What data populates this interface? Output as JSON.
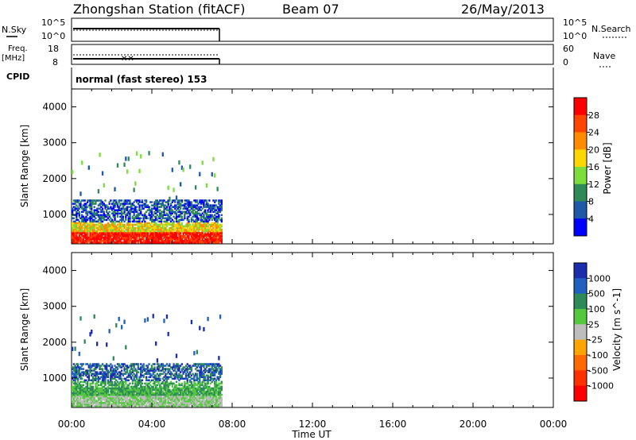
{
  "header": {
    "station": "Zhongshan Station (fitACF)",
    "beam": "Beam 07",
    "date": "26/May/2013"
  },
  "nsky_panel": {
    "label": "N.Sky",
    "right_label": "N.Search",
    "ticks": [
      "10^5",
      "10^0"
    ]
  },
  "freq_panel": {
    "label_line1": "Freq.",
    "label_line2": "[MHz]",
    "left_ticks": [
      "18",
      "8"
    ],
    "right_ticks": [
      "60",
      "0"
    ],
    "right_label": "Nave"
  },
  "cpid_panel": {
    "label": "CPID",
    "text": "normal (fast stereo) 153"
  },
  "chart_data": [
    {
      "type": "heatmap",
      "ylabel": "Slant Range [km]",
      "ylim": [
        180,
        4500
      ],
      "yticks": [
        1000,
        2000,
        3000,
        4000
      ],
      "xlim_hours": [
        0,
        24
      ],
      "data_extent_hours": [
        0,
        7.5
      ],
      "colorbar": {
        "label": "Power [dB]",
        "ticks": [
          "28",
          "24",
          "20",
          "16",
          "12",
          "8",
          "4"
        ],
        "colors": [
          "#ff0000",
          "#ff4500",
          "#ff8c00",
          "#ffd700",
          "#7cdd3c",
          "#2e8b57",
          "#1e5aa8",
          "#0000ff"
        ]
      },
      "regions": [
        {
          "x": [
            0,
            7.5
          ],
          "y": [
            200,
            500
          ],
          "value": "28"
        },
        {
          "x": [
            0,
            7.5
          ],
          "y": [
            350,
            750
          ],
          "value": "20"
        },
        {
          "x": [
            0,
            7.5
          ],
          "y": [
            600,
            1300
          ],
          "value": "8"
        },
        {
          "x": [
            0.2,
            7.5
          ],
          "y": [
            1300,
            2700
          ],
          "value": "12"
        }
      ]
    },
    {
      "type": "heatmap",
      "ylabel": "Slant Range [km]",
      "ylim": [
        180,
        4500
      ],
      "yticks": [
        1000,
        2000,
        3000,
        4000
      ],
      "xlim_hours": [
        0,
        24
      ],
      "data_extent_hours": [
        0,
        7.5
      ],
      "colorbar": {
        "label": "Velocity [m s^-1]",
        "ticks": [
          "1000",
          "500",
          "100",
          "25",
          "-25",
          "-100",
          "-500",
          "-1000"
        ],
        "colors": [
          "#1a2dad",
          "#2060c0",
          "#2e8b57",
          "#55c840",
          "#bdbdbd",
          "#ffa500",
          "#ff6a00",
          "#ff3000",
          "#ff0000"
        ]
      },
      "regions": [
        {
          "x": [
            0,
            7.5
          ],
          "y": [
            200,
            500
          ],
          "value": "25"
        },
        {
          "x": [
            0,
            7.5
          ],
          "y": [
            350,
            900
          ],
          "value": "100"
        },
        {
          "x": [
            0,
            7.5
          ],
          "y": [
            900,
            1300
          ],
          "value": "500"
        },
        {
          "x": [
            0.2,
            7.5
          ],
          "y": [
            1300,
            2700
          ],
          "value": "1000"
        }
      ]
    }
  ],
  "x_axis": {
    "ticks": [
      "00:00",
      "04:00",
      "08:00",
      "12:00",
      "16:00",
      "20:00",
      "00:00"
    ],
    "label": "Time UT"
  }
}
